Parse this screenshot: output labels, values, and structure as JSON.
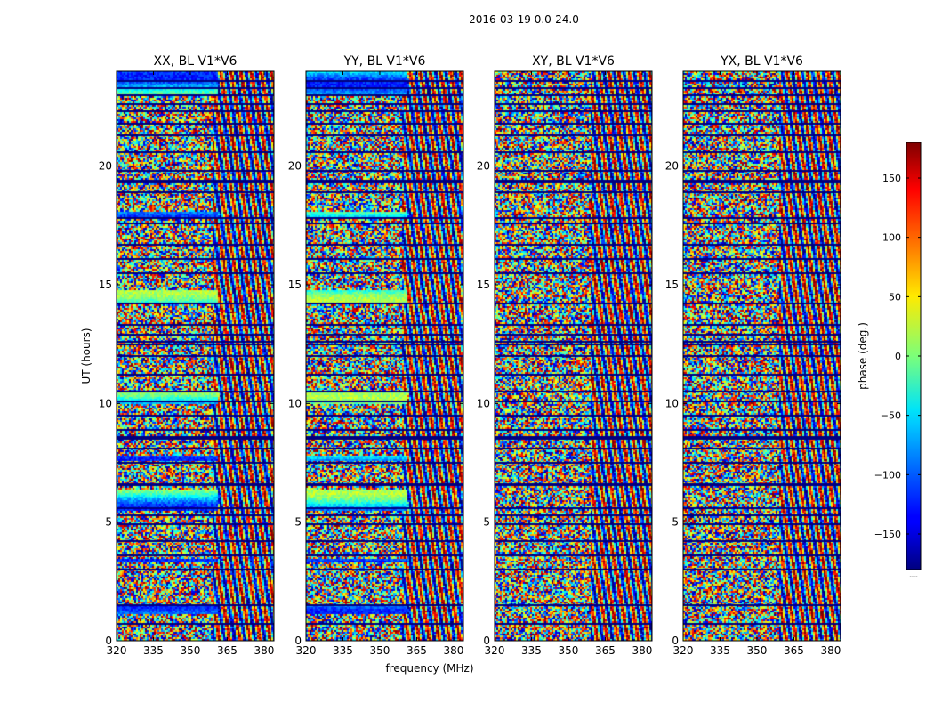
{
  "chart_data": {
    "type": "heatmap",
    "suptitle": "2016-03-19 0.0-24.0",
    "shared_xlabel": "frequency (MHz)",
    "ylabel": "UT (hours)",
    "xlim": [
      320,
      384
    ],
    "ylim": [
      0,
      24
    ],
    "xticks": [
      320,
      335,
      350,
      365,
      380
    ],
    "yticks": [
      0,
      5,
      10,
      15,
      20
    ],
    "panels": [
      {
        "title": "XX, BL V1*V6",
        "smooth_until_mhz": 361,
        "smooth_bands_ut": [
          [
            23.0,
            24.0
          ],
          [
            17.8,
            18.1
          ],
          [
            14.3,
            14.8
          ],
          [
            10.0,
            10.5
          ],
          [
            7.6,
            7.8
          ],
          [
            5.5,
            6.4
          ],
          [
            3.3,
            3.5
          ],
          [
            1.2,
            1.5
          ]
        ]
      },
      {
        "title": "YY, BL V1*V6",
        "smooth_until_mhz": 361,
        "smooth_bands_ut": [
          [
            23.0,
            24.0
          ],
          [
            17.8,
            18.1
          ],
          [
            14.3,
            14.8
          ],
          [
            10.0,
            10.5
          ],
          [
            7.6,
            7.8
          ],
          [
            5.5,
            6.4
          ],
          [
            3.3,
            3.5
          ],
          [
            1.2,
            1.5
          ]
        ]
      },
      {
        "title": "XY, BL V1*V6",
        "smooth_until_mhz": 320,
        "smooth_bands_ut": []
      },
      {
        "title": "YX, BL V1*V6",
        "smooth_until_mhz": 320,
        "smooth_bands_ut": []
      }
    ],
    "flagged_rows_ut": [
      0.7,
      1.5,
      3.0,
      3.6,
      4.2,
      4.9,
      5.3,
      5.6,
      6.55,
      6.6,
      7.5,
      8.1,
      8.5,
      8.6,
      8.9,
      9.5,
      10.1,
      10.5,
      11.2,
      12.0,
      12.5,
      12.6,
      12.9,
      13.3,
      14.2,
      15.5,
      16.1,
      16.7,
      17.6,
      17.8,
      18.9,
      19.3,
      19.4,
      19.8,
      20.6,
      21.3,
      21.8,
      22.3,
      22.6,
      23.0,
      23.3,
      23.6
    ],
    "colorbar": {
      "label": "phase (deg.)",
      "range": [
        -180,
        180
      ],
      "ticks": [
        -150,
        -100,
        -50,
        0,
        50,
        100,
        150
      ],
      "tick_labels": [
        "−150",
        "−100",
        "−50",
        "0",
        "50",
        "100",
        "150"
      ],
      "colormap": "jet",
      "note": "....."
    }
  }
}
